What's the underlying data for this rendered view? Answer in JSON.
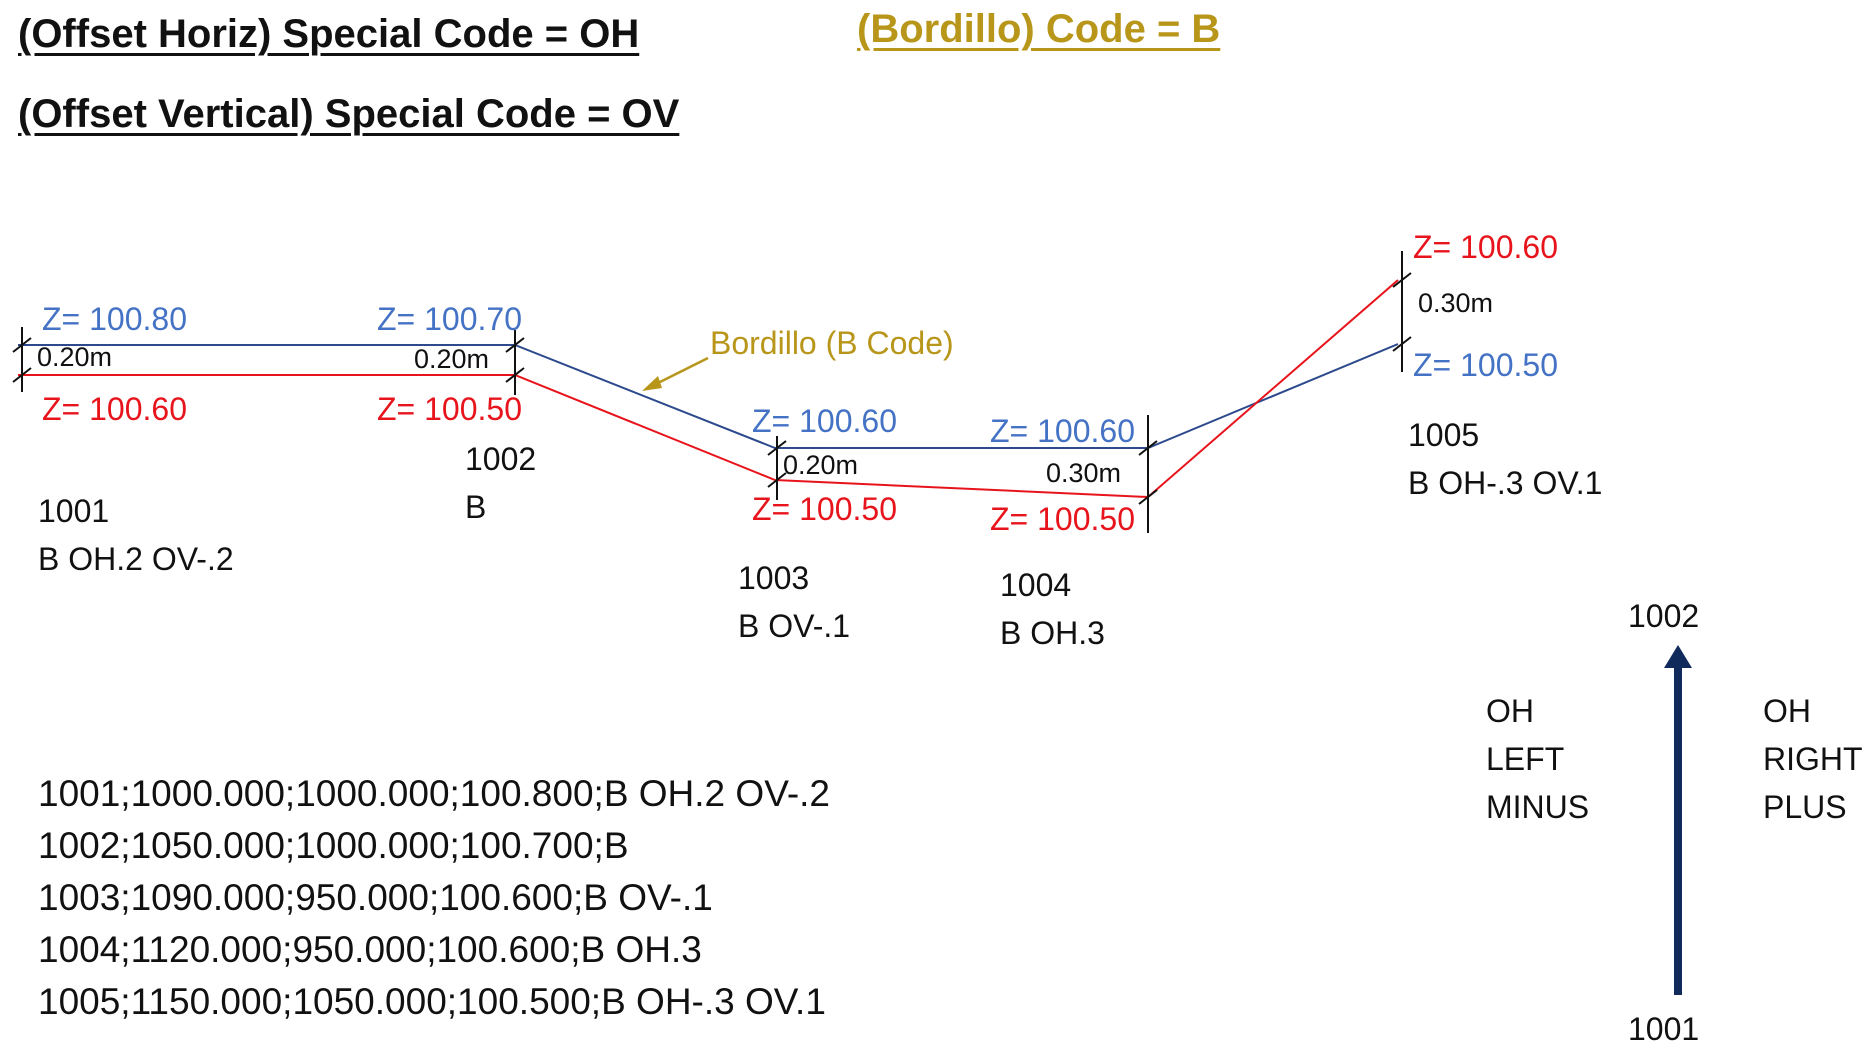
{
  "titles": {
    "offset_horiz": "(Offset Horiz) Special Code = OH",
    "offset_vertical": "(Offset Vertical) Special Code = OV",
    "bordillo": "(Bordillo) Code = B"
  },
  "colors": {
    "blue_line": "#2c4a8c",
    "blue_text": "#4472c4",
    "red": "#e8141c",
    "gold": "#b8961a",
    "navy_arrow": "#102a5c",
    "black": "#111111"
  },
  "callout": {
    "label": "Bordillo (B Code)"
  },
  "points": [
    {
      "id": "1001",
      "code": "B OH.2 OV-.2",
      "z_upper": "Z= 100.80",
      "z_lower": "Z= 100.60",
      "offset": "0.20m"
    },
    {
      "id": "1002",
      "code": "B",
      "z_upper": "Z= 100.70",
      "z_lower": "Z= 100.50",
      "offset": "0.20m"
    },
    {
      "id": "1003",
      "code": "B OV-.1",
      "z_upper": "Z= 100.60",
      "z_lower": "Z= 100.50",
      "offset": "0.20m"
    },
    {
      "id": "1004",
      "code": "B OH.3",
      "z_upper": "Z= 100.60",
      "z_lower": "Z= 100.50",
      "offset": "0.30m"
    },
    {
      "id": "1005",
      "code": "B OH-.3 OV.1",
      "z_upper": "Z= 100.60",
      "z_lower": "Z= 100.50",
      "offset": "0.30m"
    }
  ],
  "records": [
    "1001;1000.000;1000.000;100.800;B OH.2 OV-.2",
    "1002;1050.000;1000.000;100.700;B",
    "1003;1090.000;950.000;100.600;B OV-.1",
    "1004;1120.000;950.000;100.600;B OH.3",
    "1005;1150.000;1050.000;100.500;B OH-.3 OV.1"
  ],
  "direction": {
    "from": "1001",
    "to": "1002",
    "left": [
      "OH",
      "LEFT",
      "MINUS"
    ],
    "right": [
      "OH",
      "RIGHT",
      "PLUS"
    ]
  }
}
